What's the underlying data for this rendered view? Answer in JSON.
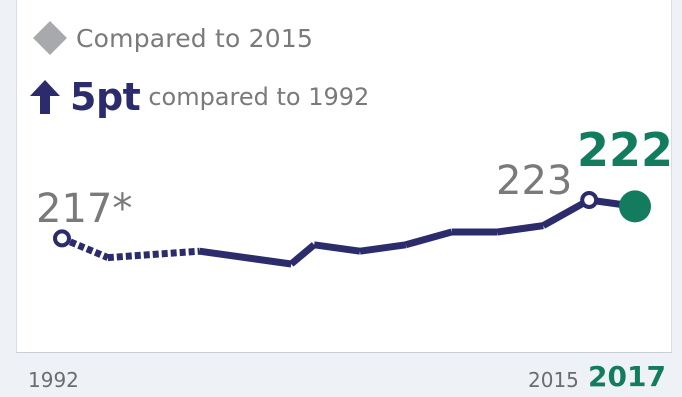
{
  "legend": {
    "compare_text": "Compared to 2015",
    "delta_value": "5pt",
    "delta_text": "compared to 1992"
  },
  "colors": {
    "navy": "#2c2c6c",
    "green": "#137b5e",
    "grey": "#7a7a7a",
    "diamond": "#a7a9ac"
  },
  "icons": {
    "compare_marker": "diamond-icon",
    "delta_marker": "up-arrow-icon"
  },
  "chart_data": {
    "type": "line",
    "x": [
      1992,
      1994,
      1998,
      2002,
      2003,
      2005,
      2007,
      2009,
      2011,
      2013,
      2015,
      2017
    ],
    "values": [
      217,
      214,
      215,
      213,
      216,
      215,
      216,
      218,
      218,
      219,
      223,
      222
    ],
    "segment_styles": [
      "dotted",
      "dotted",
      "solid",
      "solid",
      "solid",
      "solid",
      "solid",
      "solid",
      "solid",
      "solid",
      "solid"
    ],
    "labels": {
      "first": "217*",
      "previous": "223",
      "latest": "222"
    },
    "x_tick_labels": {
      "first": "1992",
      "previous": "2015",
      "latest": "2017"
    },
    "line_color": "#2c2c6c",
    "latest_point_color": "#137b5e",
    "grid": false
  }
}
